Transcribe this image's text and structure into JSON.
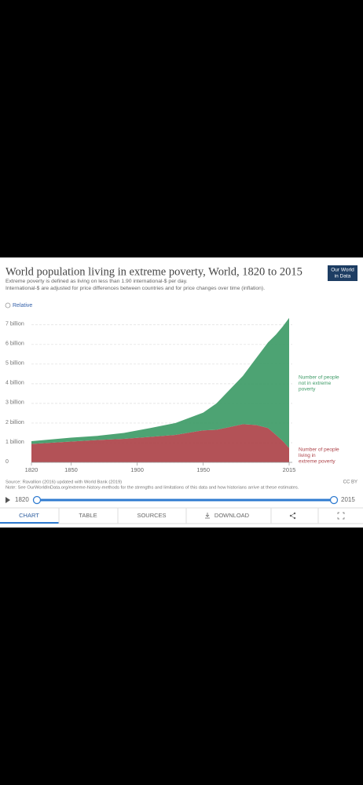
{
  "header": {
    "title": "World population living in extreme poverty, World, 1820 to 2015",
    "subtitle": [
      "Extreme poverty is defined as living on less than 1.90 international-$ per day.",
      "International-$ are adjusted for price differences between countries and for price changes over time (inflation)."
    ],
    "logo": [
      "Our World",
      "in Data"
    ],
    "relative": "Relative"
  },
  "chart_data": {
    "type": "stacked-area",
    "x": [
      1820,
      1850,
      1870,
      1890,
      1910,
      1929,
      1950,
      1960,
      1970,
      1980,
      1990,
      1999,
      2005,
      2010,
      2015
    ],
    "series": [
      {
        "name": "Number of people living in extreme poverty",
        "color": "#ad4349",
        "values": [
          0.94,
          1.06,
          1.14,
          1.2,
          1.3,
          1.4,
          1.63,
          1.66,
          1.8,
          1.94,
          1.9,
          1.75,
          1.4,
          1.1,
          0.73
        ]
      },
      {
        "name": "Number of people not in extreme poverty",
        "color": "#3e9b67",
        "values": [
          0.14,
          0.2,
          0.21,
          0.3,
          0.45,
          0.6,
          0.9,
          1.34,
          1.9,
          2.46,
          3.4,
          4.35,
          5.1,
          5.8,
          6.62
        ]
      }
    ],
    "xlim": [
      1820,
      2015
    ],
    "xticks": [
      1820,
      1850,
      1900,
      1950,
      2015
    ],
    "ylim": [
      0,
      7.35
    ],
    "yticks": [
      0,
      {
        "value": 1,
        "label": "1 billion"
      },
      {
        "value": 2,
        "label": "2 billion"
      },
      {
        "value": 3,
        "label": "3 billion"
      },
      {
        "value": 4,
        "label": "4 billion"
      },
      {
        "value": 5,
        "label": "5 billion"
      },
      {
        "value": 6,
        "label": "6 billion"
      },
      {
        "value": 7,
        "label": "7 billion"
      }
    ],
    "grid": true
  },
  "footer": {
    "source": "Source: Ravallion (2016) updated with World Bank (2019)",
    "note": "Note: See OurWorldInData.org/extreme-history-methods for the strengths and limitations of this data and how historians arrive at these estimates.",
    "license": "CC BY"
  },
  "timeline": {
    "start": "1820",
    "end": "2015"
  },
  "tabs": [
    "CHART",
    "TABLE",
    "SOURCES",
    "DOWNLOAD"
  ]
}
